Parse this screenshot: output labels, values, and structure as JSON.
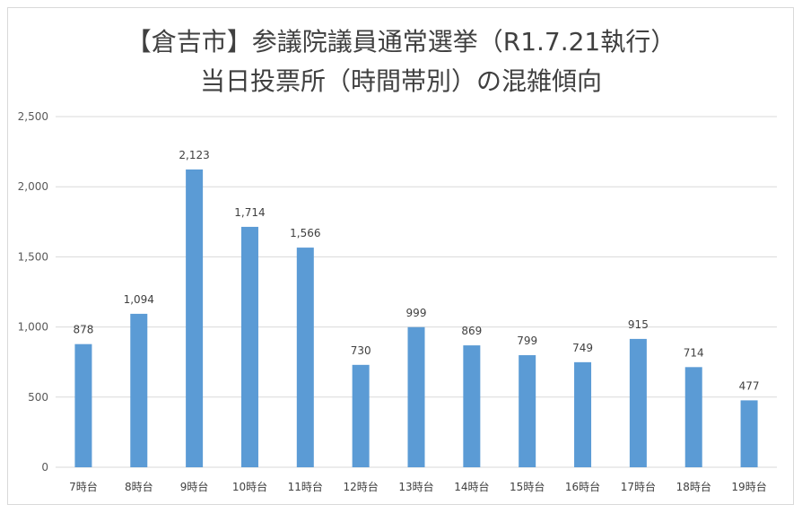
{
  "chart_data": {
    "type": "bar",
    "title": "【倉吉市】参議院議員通常選挙（R1.7.21執行）",
    "subtitle": "当日投票所（時間帯別）の混雑傾向",
    "categories": [
      "7時台",
      "8時台",
      "9時台",
      "10時台",
      "11時台",
      "12時台",
      "13時台",
      "14時台",
      "15時台",
      "16時台",
      "17時台",
      "18時台",
      "19時台"
    ],
    "values": [
      878,
      1094,
      2123,
      1714,
      1566,
      730,
      999,
      869,
      799,
      749,
      915,
      714,
      477
    ],
    "value_labels": [
      "878",
      "1,094",
      "2,123",
      "1,714",
      "1,566",
      "730",
      "999",
      "869",
      "799",
      "749",
      "915",
      "714",
      "477"
    ],
    "y_ticks": [
      0,
      500,
      1000,
      1500,
      2000,
      2500
    ],
    "y_tick_labels": [
      "0",
      "500",
      "1,000",
      "1,500",
      "2,000",
      "2,500"
    ],
    "ylim": [
      0,
      2500
    ],
    "xlabel": "",
    "ylabel": "",
    "grid": true,
    "legend": "none",
    "bar_color": "#5b9bd5",
    "gridline_color": "#d9d9d9"
  }
}
